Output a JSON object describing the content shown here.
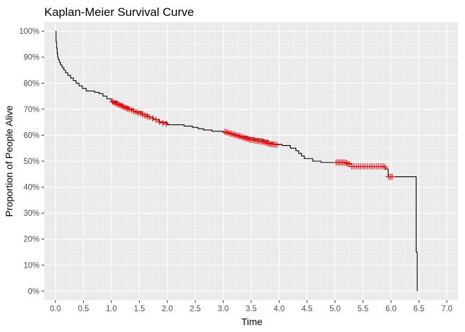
{
  "chart_data": {
    "type": "line",
    "title": "Kaplan-Meier Survival Curve",
    "xlabel": "Time",
    "ylabel": "Proportion of People Alive",
    "xlim": [
      -0.2,
      7.2
    ],
    "ylim": [
      -0.035,
      1.035
    ],
    "x_ticks": [
      0.0,
      0.5,
      1.0,
      1.5,
      2.0,
      2.5,
      3.0,
      3.5,
      4.0,
      4.5,
      5.0,
      5.5,
      6.0,
      6.5,
      7.0
    ],
    "x_tick_labels": [
      "0.0",
      "0.5",
      "1.0",
      "1.5",
      "2.0",
      "2.5",
      "3.0",
      "3.5",
      "4.0",
      "4.5",
      "5.0",
      "5.5",
      "6.0",
      "6.5",
      "7.0"
    ],
    "y_ticks": [
      0,
      0.1,
      0.2,
      0.3,
      0.4,
      0.5,
      0.6,
      0.7,
      0.8,
      0.9,
      1.0
    ],
    "y_tick_labels": [
      "0%",
      "10%",
      "20%",
      "30%",
      "40%",
      "50%",
      "60%",
      "70%",
      "80%",
      "90%",
      "100%"
    ],
    "grid": true,
    "legend": "none",
    "colors": {
      "panel": "#ebebeb",
      "grid_major": "#ffffff",
      "grid_minor": "#f5f5f5",
      "curve": "#000000",
      "censor": "#ff0000"
    },
    "series": [
      {
        "kind": "survival-step",
        "points": [
          [
            0.0,
            1.0
          ],
          [
            0.01,
            0.96
          ],
          [
            0.02,
            0.935
          ],
          [
            0.03,
            0.915
          ],
          [
            0.04,
            0.9
          ],
          [
            0.05,
            0.89
          ],
          [
            0.07,
            0.88
          ],
          [
            0.09,
            0.87
          ],
          [
            0.12,
            0.86
          ],
          [
            0.15,
            0.85
          ],
          [
            0.18,
            0.84
          ],
          [
            0.22,
            0.83
          ],
          [
            0.27,
            0.82
          ],
          [
            0.32,
            0.81
          ],
          [
            0.37,
            0.8
          ],
          [
            0.42,
            0.79
          ],
          [
            0.48,
            0.78
          ],
          [
            0.55,
            0.77
          ],
          [
            0.7,
            0.765
          ],
          [
            0.78,
            0.76
          ],
          [
            0.85,
            0.75
          ],
          [
            0.92,
            0.74
          ],
          [
            1.0,
            0.73
          ],
          [
            1.1,
            0.72
          ],
          [
            1.2,
            0.71
          ],
          [
            1.3,
            0.7
          ],
          [
            1.4,
            0.69
          ],
          [
            1.55,
            0.68
          ],
          [
            1.65,
            0.67
          ],
          [
            1.75,
            0.66
          ],
          [
            1.85,
            0.65
          ],
          [
            2.0,
            0.64
          ],
          [
            2.3,
            0.635
          ],
          [
            2.45,
            0.63
          ],
          [
            2.55,
            0.625
          ],
          [
            2.65,
            0.62
          ],
          [
            2.8,
            0.615
          ],
          [
            3.0,
            0.61
          ],
          [
            3.1,
            0.605
          ],
          [
            3.2,
            0.6
          ],
          [
            3.3,
            0.595
          ],
          [
            3.45,
            0.59
          ],
          [
            3.55,
            0.585
          ],
          [
            3.7,
            0.58
          ],
          [
            3.8,
            0.57
          ],
          [
            3.9,
            0.565
          ],
          [
            4.05,
            0.56
          ],
          [
            4.2,
            0.55
          ],
          [
            4.3,
            0.54
          ],
          [
            4.35,
            0.53
          ],
          [
            4.4,
            0.52
          ],
          [
            4.45,
            0.51
          ],
          [
            4.6,
            0.5
          ],
          [
            4.75,
            0.495
          ],
          [
            5.2,
            0.49
          ],
          [
            5.3,
            0.48
          ],
          [
            5.9,
            0.47
          ],
          [
            5.95,
            0.44
          ],
          [
            6.45,
            0.15
          ],
          [
            6.47,
            0.0
          ]
        ]
      },
      {
        "kind": "censor-marks",
        "points": [
          [
            1.02,
            0.729
          ],
          [
            1.05,
            0.726
          ],
          [
            1.08,
            0.723
          ],
          [
            1.11,
            0.72
          ],
          [
            1.14,
            0.717
          ],
          [
            1.17,
            0.714
          ],
          [
            1.2,
            0.711
          ],
          [
            1.23,
            0.708
          ],
          [
            1.26,
            0.705
          ],
          [
            1.29,
            0.702
          ],
          [
            1.32,
            0.7
          ],
          [
            1.36,
            0.697
          ],
          [
            1.4,
            0.693
          ],
          [
            1.44,
            0.689
          ],
          [
            1.48,
            0.686
          ],
          [
            1.52,
            0.683
          ],
          [
            1.56,
            0.68
          ],
          [
            1.6,
            0.676
          ],
          [
            1.64,
            0.672
          ],
          [
            1.68,
            0.669
          ],
          [
            1.74,
            0.664
          ],
          [
            1.8,
            0.659
          ],
          [
            1.86,
            0.652
          ],
          [
            1.92,
            0.647
          ],
          [
            1.98,
            0.643
          ],
          [
            3.03,
            0.613
          ],
          [
            3.06,
            0.611
          ],
          [
            3.09,
            0.609
          ],
          [
            3.12,
            0.607
          ],
          [
            3.15,
            0.605
          ],
          [
            3.18,
            0.603
          ],
          [
            3.21,
            0.601
          ],
          [
            3.24,
            0.599
          ],
          [
            3.27,
            0.597
          ],
          [
            3.3,
            0.595
          ],
          [
            3.33,
            0.593
          ],
          [
            3.36,
            0.591
          ],
          [
            3.39,
            0.589
          ],
          [
            3.42,
            0.587
          ],
          [
            3.45,
            0.585
          ],
          [
            3.48,
            0.583
          ],
          [
            3.51,
            0.582
          ],
          [
            3.54,
            0.581
          ],
          [
            3.57,
            0.58
          ],
          [
            3.6,
            0.579
          ],
          [
            3.63,
            0.578
          ],
          [
            3.66,
            0.577
          ],
          [
            3.69,
            0.576
          ],
          [
            3.72,
            0.575
          ],
          [
            3.75,
            0.572
          ],
          [
            3.78,
            0.57
          ],
          [
            3.81,
            0.568
          ],
          [
            3.84,
            0.566
          ],
          [
            3.87,
            0.565
          ],
          [
            3.9,
            0.565
          ],
          [
            3.93,
            0.564
          ],
          [
            3.96,
            0.563
          ],
          [
            5.02,
            0.495
          ],
          [
            5.05,
            0.495
          ],
          [
            5.08,
            0.495
          ],
          [
            5.11,
            0.495
          ],
          [
            5.14,
            0.495
          ],
          [
            5.17,
            0.495
          ],
          [
            5.2,
            0.493
          ],
          [
            5.23,
            0.49
          ],
          [
            5.26,
            0.488
          ],
          [
            5.3,
            0.48
          ],
          [
            5.34,
            0.48
          ],
          [
            5.38,
            0.48
          ],
          [
            5.42,
            0.48
          ],
          [
            5.46,
            0.48
          ],
          [
            5.5,
            0.48
          ],
          [
            5.54,
            0.48
          ],
          [
            5.58,
            0.48
          ],
          [
            5.62,
            0.48
          ],
          [
            5.66,
            0.48
          ],
          [
            5.7,
            0.48
          ],
          [
            5.74,
            0.48
          ],
          [
            5.78,
            0.48
          ],
          [
            5.82,
            0.48
          ],
          [
            5.86,
            0.48
          ],
          [
            5.89,
            0.478
          ],
          [
            5.96,
            0.44
          ],
          [
            5.99,
            0.44
          ],
          [
            6.02,
            0.44
          ]
        ]
      }
    ]
  }
}
